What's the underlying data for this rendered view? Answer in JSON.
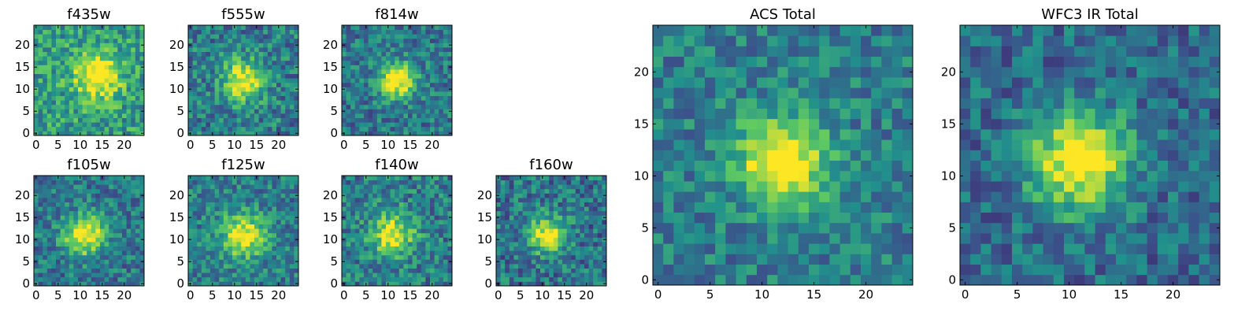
{
  "figure": {
    "title": ""
  },
  "colormap": {
    "name": "viridis",
    "stops": [
      "#440154",
      "#3b528b",
      "#21918c",
      "#5ec962",
      "#fde725"
    ]
  },
  "chart_data": [
    {
      "type": "heatmap",
      "title": "f435w",
      "image_size": [
        25,
        25
      ],
      "xlim": [
        0,
        24
      ],
      "ylim": [
        0,
        24
      ],
      "xticks": [
        0,
        5,
        10,
        15,
        20
      ],
      "yticks": [
        0,
        5,
        10,
        15,
        20
      ],
      "source_center": [
        14,
        13
      ],
      "source_spread": 3.5,
      "peak_level": 0.62,
      "background_level": 0.55,
      "noise_level": 0.22,
      "xlabel": "",
      "ylabel": ""
    },
    {
      "type": "heatmap",
      "title": "f555w",
      "image_size": [
        25,
        25
      ],
      "xlim": [
        0,
        24
      ],
      "ylim": [
        0,
        24
      ],
      "xticks": [
        0,
        5,
        10,
        15,
        20
      ],
      "yticks": [
        0,
        5,
        10,
        15,
        20
      ],
      "source_center": [
        12,
        12
      ],
      "source_spread": 3.2,
      "peak_level": 0.6,
      "background_level": 0.42,
      "noise_level": 0.22,
      "xlabel": "",
      "ylabel": ""
    },
    {
      "type": "heatmap",
      "title": "f814w",
      "image_size": [
        25,
        25
      ],
      "xlim": [
        0,
        24
      ],
      "ylim": [
        0,
        24
      ],
      "xticks": [
        0,
        5,
        10,
        15,
        20
      ],
      "yticks": [
        0,
        5,
        10,
        15,
        20
      ],
      "source_center": [
        12,
        12
      ],
      "source_spread": 2.8,
      "peak_level": 0.7,
      "background_level": 0.4,
      "noise_level": 0.2,
      "xlabel": "",
      "ylabel": ""
    },
    {
      "type": "heatmap",
      "title": "f105w",
      "image_size": [
        25,
        25
      ],
      "xlim": [
        0,
        24
      ],
      "ylim": [
        0,
        24
      ],
      "xticks": [
        0,
        5,
        10,
        15,
        20
      ],
      "yticks": [
        0,
        5,
        10,
        15,
        20
      ],
      "source_center": [
        11,
        11
      ],
      "source_spread": 3.2,
      "peak_level": 0.65,
      "background_level": 0.4,
      "noise_level": 0.2,
      "xlabel": "",
      "ylabel": ""
    },
    {
      "type": "heatmap",
      "title": "f125w",
      "image_size": [
        25,
        25
      ],
      "xlim": [
        0,
        24
      ],
      "ylim": [
        0,
        24
      ],
      "xticks": [
        0,
        5,
        10,
        15,
        20
      ],
      "yticks": [
        0,
        5,
        10,
        15,
        20
      ],
      "source_center": [
        12,
        11
      ],
      "source_spread": 3.6,
      "peak_level": 0.58,
      "background_level": 0.42,
      "noise_level": 0.2,
      "xlabel": "",
      "ylabel": ""
    },
    {
      "type": "heatmap",
      "title": "f140w",
      "image_size": [
        25,
        25
      ],
      "xlim": [
        0,
        24
      ],
      "ylim": [
        0,
        24
      ],
      "xticks": [
        0,
        5,
        10,
        15,
        20
      ],
      "yticks": [
        0,
        5,
        10,
        15,
        20
      ],
      "source_center": [
        11,
        11
      ],
      "source_spread": 3.4,
      "peak_level": 0.58,
      "background_level": 0.42,
      "noise_level": 0.22,
      "xlabel": "",
      "ylabel": ""
    },
    {
      "type": "heatmap",
      "title": "f160w",
      "image_size": [
        25,
        25
      ],
      "xlim": [
        0,
        24
      ],
      "ylim": [
        0,
        24
      ],
      "xticks": [
        0,
        5,
        10,
        15,
        20
      ],
      "yticks": [
        0,
        5,
        10,
        15,
        20
      ],
      "source_center": [
        11,
        11
      ],
      "source_spread": 3.0,
      "peak_level": 0.6,
      "background_level": 0.38,
      "noise_level": 0.22,
      "xlabel": "",
      "ylabel": ""
    },
    {
      "type": "heatmap",
      "title": "ACS Total",
      "image_size": [
        25,
        25
      ],
      "xlim": [
        0,
        24
      ],
      "ylim": [
        0,
        24
      ],
      "xticks": [
        0,
        5,
        10,
        15,
        20
      ],
      "yticks": [
        0,
        5,
        10,
        15,
        20
      ],
      "source_center": [
        12,
        11.5
      ],
      "source_spread": 3.0,
      "peak_level": 0.7,
      "background_level": 0.42,
      "noise_level": 0.18,
      "xlabel": "",
      "ylabel": ""
    },
    {
      "type": "heatmap",
      "title": "WFC3 IR Total",
      "image_size": [
        25,
        25
      ],
      "xlim": [
        0,
        24
      ],
      "ylim": [
        0,
        24
      ],
      "xticks": [
        0,
        5,
        10,
        15,
        20
      ],
      "yticks": [
        0,
        5,
        10,
        15,
        20
      ],
      "source_center": [
        11,
        11.5
      ],
      "source_spread": 3.3,
      "peak_level": 0.72,
      "background_level": 0.35,
      "noise_level": 0.18,
      "xlabel": "",
      "ylabel": ""
    }
  ]
}
